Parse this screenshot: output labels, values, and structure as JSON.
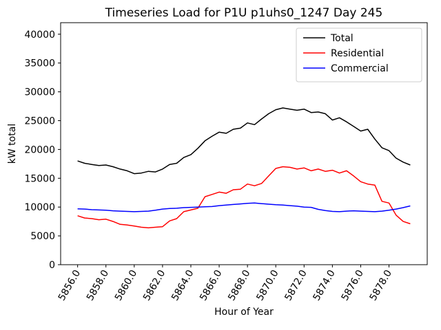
{
  "chart_data": {
    "type": "line",
    "title": "Timeseries Load for P1U p1uhs0_1247  Day 245",
    "xlabel": "Hour of Year",
    "ylabel": "kW total",
    "grid": false,
    "legend_position": "upper right",
    "xlim": [
      5854.8,
      5880.7
    ],
    "ylim": [
      0,
      42000
    ],
    "xticks": [
      5856,
      5858,
      5860,
      5862,
      5864,
      5866,
      5868,
      5870,
      5872,
      5874,
      5876,
      5878
    ],
    "xtick_labels": [
      "5856.0",
      "5858.0",
      "5860.0",
      "5862.0",
      "5864.0",
      "5866.0",
      "5868.0",
      "5870.0",
      "5872.0",
      "5874.0",
      "5876.0",
      "5878.0"
    ],
    "yticks": [
      0,
      5000,
      10000,
      15000,
      20000,
      25000,
      30000,
      35000,
      40000
    ],
    "ytick_labels": [
      "0",
      "5000",
      "10000",
      "15000",
      "20000",
      "25000",
      "30000",
      "35000",
      "40000"
    ],
    "x": [
      5856.0,
      5856.5,
      5857.0,
      5857.5,
      5858.0,
      5858.5,
      5859.0,
      5859.5,
      5860.0,
      5860.5,
      5861.0,
      5861.5,
      5862.0,
      5862.5,
      5863.0,
      5863.5,
      5864.0,
      5864.5,
      5865.0,
      5865.5,
      5866.0,
      5866.5,
      5867.0,
      5867.5,
      5868.0,
      5868.5,
      5869.0,
      5869.5,
      5870.0,
      5870.5,
      5871.0,
      5871.5,
      5872.0,
      5872.5,
      5873.0,
      5873.5,
      5874.0,
      5874.5,
      5875.0,
      5875.5,
      5876.0,
      5876.5,
      5877.0,
      5877.5,
      5878.0,
      5878.5,
      5879.0,
      5879.5
    ],
    "series": [
      {
        "name": "Total",
        "color": "#000000",
        "values": [
          18000,
          17600,
          17400,
          17200,
          17300,
          17000,
          16600,
          16300,
          15800,
          15900,
          16200,
          16100,
          16600,
          17400,
          17600,
          18600,
          19100,
          20200,
          21500,
          22300,
          23000,
          22800,
          23500,
          23700,
          24600,
          24300,
          25300,
          26200,
          26900,
          27200,
          27000,
          26800,
          27000,
          26400,
          26500,
          26200,
          25100,
          25500,
          24800,
          24000,
          23200,
          23500,
          21800,
          20300,
          19800,
          18500,
          17800,
          17300
        ]
      },
      {
        "name": "Residential",
        "color": "#ff0000",
        "values": [
          8500,
          8100,
          8000,
          7800,
          7900,
          7500,
          7000,
          6900,
          6700,
          6500,
          6400,
          6500,
          6600,
          7600,
          8000,
          9200,
          9500,
          9800,
          11800,
          12200,
          12600,
          12400,
          13000,
          13100,
          14000,
          13700,
          14100,
          15400,
          16700,
          17000,
          16900,
          16600,
          16800,
          16300,
          16600,
          16200,
          16400,
          15900,
          16300,
          15400,
          14400,
          14000,
          13800,
          11000,
          10700,
          8600,
          7500,
          7100
        ]
      },
      {
        "name": "Commercial",
        "color": "#0000ff",
        "values": [
          9700,
          9650,
          9550,
          9500,
          9450,
          9350,
          9300,
          9250,
          9200,
          9250,
          9300,
          9450,
          9650,
          9750,
          9800,
          9900,
          9950,
          10000,
          10050,
          10100,
          10250,
          10350,
          10450,
          10550,
          10650,
          10700,
          10600,
          10500,
          10400,
          10350,
          10250,
          10150,
          10000,
          9950,
          9600,
          9400,
          9250,
          9200,
          9300,
          9350,
          9300,
          9250,
          9200,
          9300,
          9450,
          9650,
          9900,
          10200
        ]
      }
    ]
  }
}
